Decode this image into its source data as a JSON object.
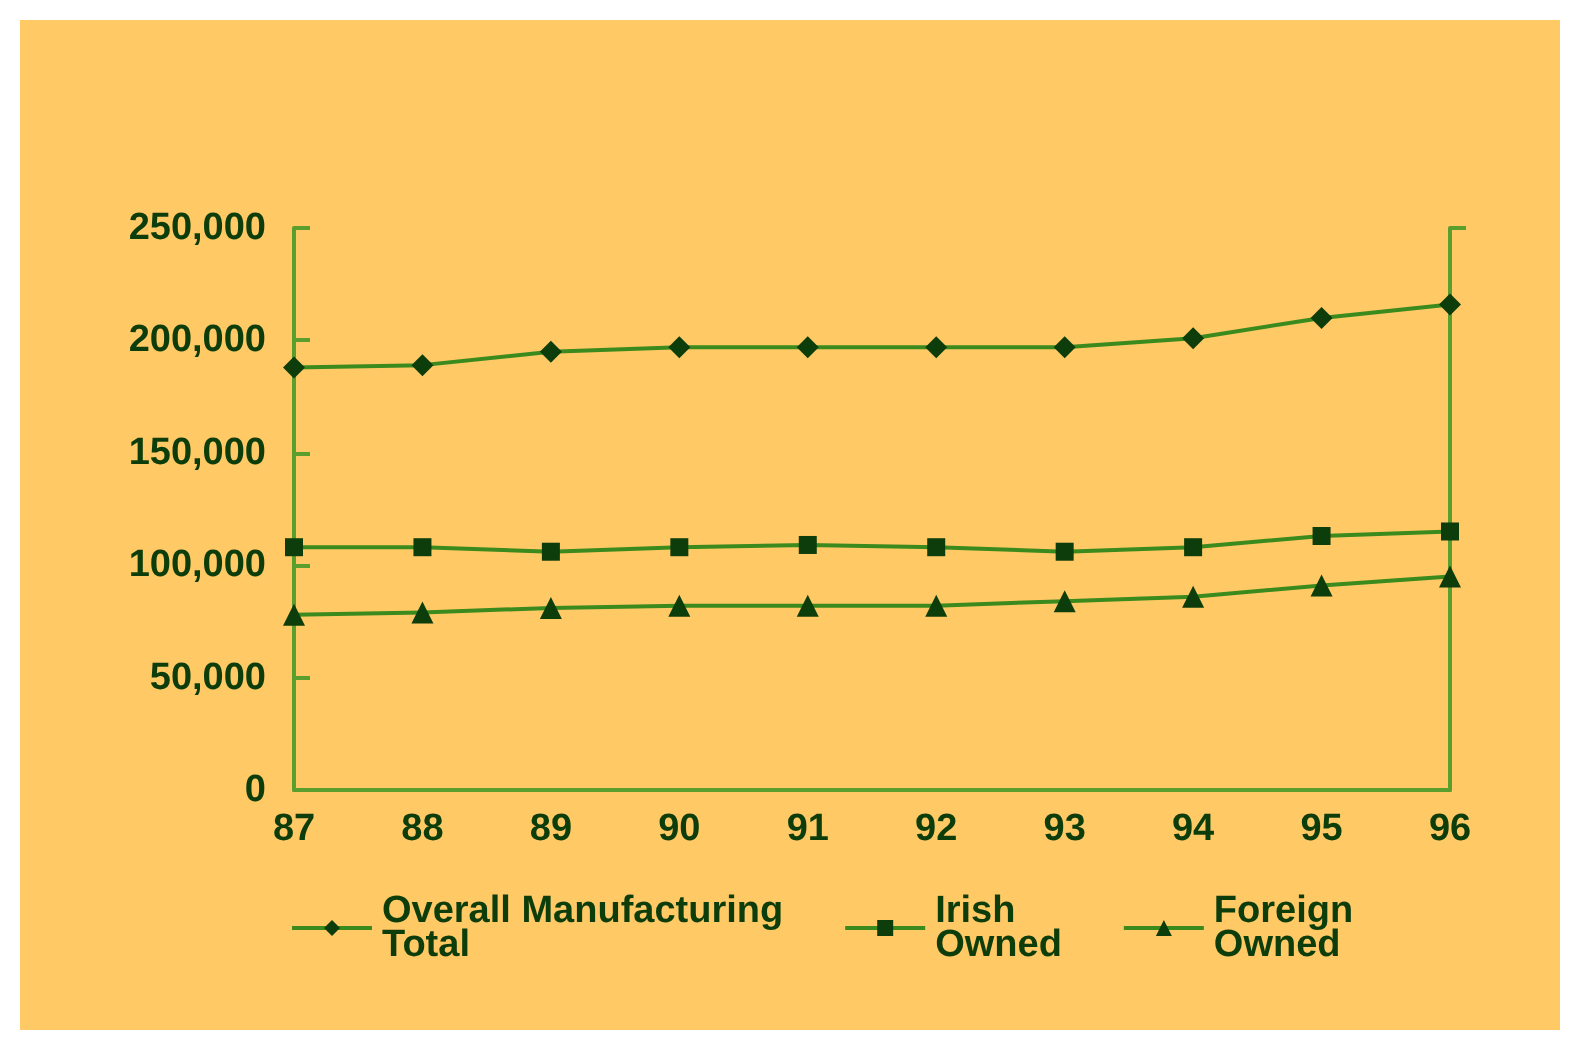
{
  "chart_data": {
    "type": "line",
    "categories": [
      "87",
      "88",
      "89",
      "90",
      "91",
      "92",
      "93",
      "94",
      "95",
      "96"
    ],
    "series": [
      {
        "name": "Overall Manufacturing\nTotal",
        "color": "#0d3d0a",
        "marker": "diamond",
        "values": [
          188000,
          189000,
          195000,
          197000,
          197000,
          197000,
          197000,
          201000,
          210000,
          216000
        ]
      },
      {
        "name": "Irish\nOwned",
        "color": "#0d3d0a",
        "marker": "square",
        "values": [
          108000,
          108000,
          106000,
          108000,
          109000,
          108000,
          106000,
          108000,
          113000,
          115000
        ]
      },
      {
        "name": "Foreign\nOwned",
        "color": "#0d3d0a",
        "marker": "triangle",
        "values": [
          78000,
          79000,
          81000,
          82000,
          82000,
          82000,
          84000,
          86000,
          91000,
          95000
        ]
      }
    ],
    "ylim": [
      0,
      250000
    ],
    "yticks": [
      {
        "value": 0,
        "label": "0"
      },
      {
        "value": 50000,
        "label": "50,000"
      },
      {
        "value": 100000,
        "label": "100,000"
      },
      {
        "value": 150000,
        "label": "150,000"
      },
      {
        "value": 200000,
        "label": "200,000"
      },
      {
        "value": 250000,
        "label": "250,000"
      }
    ],
    "grid": false,
    "legend": "bottom",
    "line_style": "solid"
  }
}
